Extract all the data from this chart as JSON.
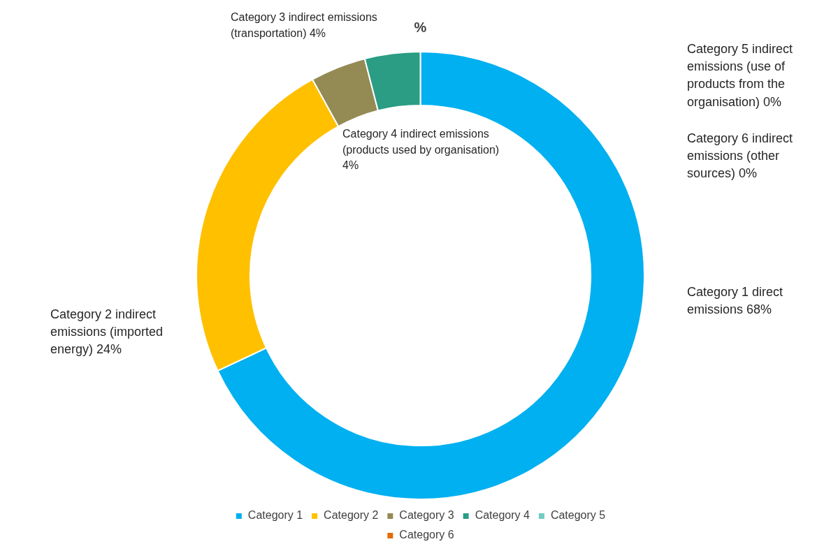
{
  "chart_data": {
    "type": "donut",
    "title": "%",
    "categories": [
      "Category 1",
      "Category 2",
      "Category 3",
      "Category 4",
      "Category 5",
      "Category 6"
    ],
    "values": [
      68,
      24,
      4,
      4,
      0,
      0
    ],
    "colors": [
      "#00b0f0",
      "#ffc000",
      "#948a54",
      "#2a9d84",
      "#6fcdc0",
      "#e36c0a"
    ],
    "value_labels": [
      "Category 1 direct emissions 68%",
      "Category 2 indirect emissions (imported energy) 24%",
      "Category 3 indirect emissions (transportation) 4%",
      "Category 4 indirect emissions (products used by organisation) 4%",
      "Category 5 indirect emissions (use of products from the organisation) 0%",
      "Category 6 indirect emissions (other sources) 0%"
    ],
    "legend": "bottom"
  }
}
